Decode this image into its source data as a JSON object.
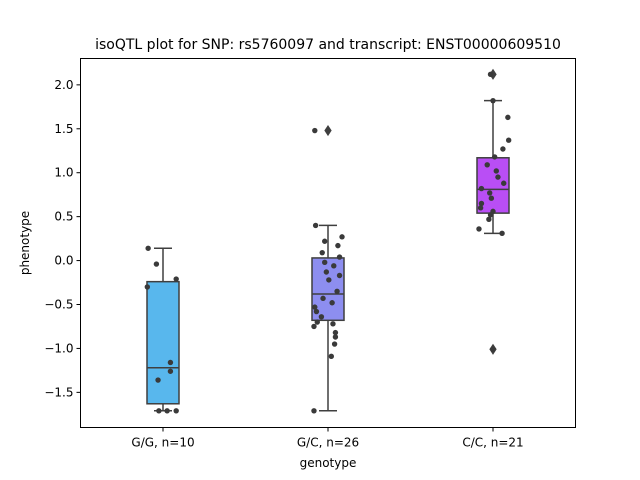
{
  "chart_data": {
    "type": "box",
    "title": "isoQTL plot for SNP: rs5760097 and transcript: ENST00000609510",
    "xlabel": "genotype",
    "ylabel": "phenotype",
    "ylim": [
      -1.9,
      2.3
    ],
    "yticks": [
      2.0,
      1.5,
      1.0,
      0.5,
      0.0,
      -0.5,
      -1.0,
      -1.5
    ],
    "ytick_labels": [
      "2.0",
      "1.5",
      "1.0",
      "0.5",
      "0.0",
      "−0.5",
      "−1.0",
      "−1.5"
    ],
    "grid": false,
    "legend": "none",
    "categories": [
      "G/G, n=10",
      "G/C, n=26",
      "C/C, n=21"
    ],
    "boxes": [
      {
        "category": "G/G, n=10",
        "color": "#58b7ed",
        "whisker_low": -1.71,
        "q1": -1.63,
        "median": -1.22,
        "q3": -0.24,
        "whisker_high": 0.14,
        "outliers": [],
        "points": [
          {
            "x": -0.18,
            "y": 0.14
          },
          {
            "x": -0.08,
            "y": -0.04
          },
          {
            "x": -0.19,
            "y": -0.3
          },
          {
            "x": 0.16,
            "y": -0.21
          },
          {
            "x": 0.09,
            "y": -1.16
          },
          {
            "x": 0.09,
            "y": -1.26
          },
          {
            "x": -0.06,
            "y": -1.36
          },
          {
            "x": -0.05,
            "y": -1.71
          },
          {
            "x": 0.05,
            "y": -1.71
          },
          {
            "x": 0.16,
            "y": -1.71
          }
        ]
      },
      {
        "category": "G/C, n=26",
        "color": "#8d8ef0",
        "whisker_low": -1.71,
        "q1": -0.68,
        "median": -0.38,
        "q3": 0.03,
        "whisker_high": 0.4,
        "outliers": [
          1.48
        ],
        "points": [
          {
            "x": -0.16,
            "y": 1.48
          },
          {
            "x": -0.15,
            "y": 0.4
          },
          {
            "x": 0.17,
            "y": 0.27
          },
          {
            "x": -0.04,
            "y": 0.22
          },
          {
            "x": 0.12,
            "y": 0.17
          },
          {
            "x": -0.07,
            "y": 0.09
          },
          {
            "x": 0.14,
            "y": 0.04
          },
          {
            "x": -0.04,
            "y": -0.02
          },
          {
            "x": 0.07,
            "y": -0.06
          },
          {
            "x": -0.02,
            "y": -0.13
          },
          {
            "x": 0.14,
            "y": -0.17
          },
          {
            "x": 0.01,
            "y": -0.22
          },
          {
            "x": 0.11,
            "y": -0.35
          },
          {
            "x": -0.06,
            "y": -0.43
          },
          {
            "x": 0.05,
            "y": -0.48
          },
          {
            "x": -0.16,
            "y": -0.53
          },
          {
            "x": -0.14,
            "y": -0.58
          },
          {
            "x": -0.08,
            "y": -0.64
          },
          {
            "x": -0.13,
            "y": -0.7
          },
          {
            "x": -0.17,
            "y": -0.75
          },
          {
            "x": 0.09,
            "y": -0.82
          },
          {
            "x": 0.09,
            "y": -0.87
          },
          {
            "x": 0.08,
            "y": -0.95
          },
          {
            "x": 0.04,
            "y": -1.09
          },
          {
            "x": -0.17,
            "y": -1.71
          },
          {
            "x": 0.06,
            "y": -0.72
          }
        ]
      },
      {
        "category": "C/C, n=21",
        "color": "#b94ef5",
        "whisker_low": 0.31,
        "q1": 0.54,
        "median": 0.81,
        "q3": 1.17,
        "whisker_high": 1.82,
        "outliers": [
          2.12,
          -1.01
        ],
        "points": [
          {
            "x": -0.03,
            "y": 2.12
          },
          {
            "x": 0.0,
            "y": 1.82
          },
          {
            "x": 0.18,
            "y": 1.63
          },
          {
            "x": 0.19,
            "y": 1.37
          },
          {
            "x": 0.12,
            "y": 1.27
          },
          {
            "x": 0.02,
            "y": 1.18
          },
          {
            "x": -0.07,
            "y": 1.09
          },
          {
            "x": 0.04,
            "y": 1.02
          },
          {
            "x": 0.06,
            "y": 0.95
          },
          {
            "x": 0.13,
            "y": 0.88
          },
          {
            "x": -0.14,
            "y": 0.82
          },
          {
            "x": -0.04,
            "y": 0.77
          },
          {
            "x": -0.02,
            "y": 0.71
          },
          {
            "x": -0.14,
            "y": 0.65
          },
          {
            "x": -0.15,
            "y": 0.6
          },
          {
            "x": 0.0,
            "y": 0.56
          },
          {
            "x": -0.03,
            "y": 0.52
          },
          {
            "x": -0.05,
            "y": 0.47
          },
          {
            "x": -0.17,
            "y": 0.36
          },
          {
            "x": 0.11,
            "y": 0.31
          },
          {
            "x": 0.0,
            "y": -1.01
          }
        ]
      }
    ]
  },
  "colors": {
    "box_edge": "#3f3f3f",
    "point": "#3a3a3a",
    "axis": "#000000"
  }
}
